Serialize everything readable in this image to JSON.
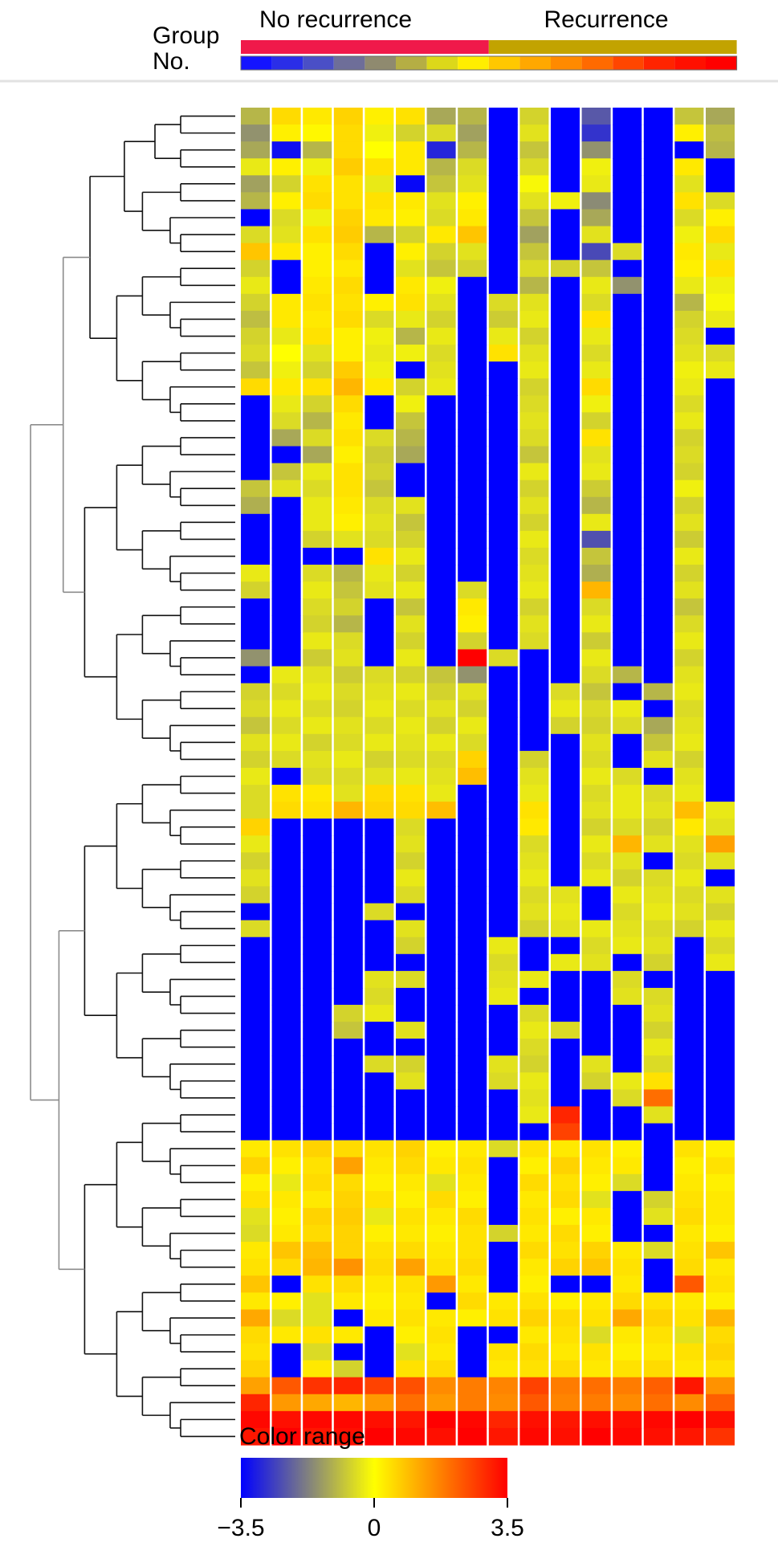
{
  "chart_data": {
    "type": "heatmap",
    "group_row_label": "Group",
    "number_row_label": "No.",
    "groups": [
      {
        "name": "No recurrence",
        "color": "#f0194a",
        "columns": 8
      },
      {
        "name": "Recurrence",
        "color": "#c2a300",
        "columns": 8
      }
    ],
    "number_colors": [
      "#1414ff",
      "#2a2ee8",
      "#4a4fc6",
      "#6e6e99",
      "#8f8a6f",
      "#b5ae44",
      "#dcd81a",
      "#ffee00",
      "#ffc800",
      "#ffa800",
      "#ff8a00",
      "#ff6a00",
      "#ff4600",
      "#ff2400",
      "#ff1000",
      "#ff0000"
    ],
    "color_scale": {
      "label": "Color range",
      "min": -3.5,
      "mid": 0,
      "max": 3.5,
      "tick_labels": [
        "−3.5",
        "0",
        "3.5"
      ],
      "colors": [
        "#0000ff",
        "#808080",
        "#ffff00",
        "#ff8000",
        "#ff0000"
      ]
    },
    "n_columns": 16,
    "n_rows": 65,
    "block_rows": 4,
    "values": [
      [
        -1.0,
        0.5,
        0.3,
        0.6,
        0.2,
        0.4,
        -1.2,
        -1.0,
        -3.5,
        -0.6,
        -3.5,
        -2.3,
        -3.5,
        -3.5,
        -0.8,
        -1.2
      ],
      [
        -1.5,
        0.2,
        0.1,
        0.5,
        -0.2,
        -0.6,
        -0.5,
        -1.3,
        -3.5,
        -0.4,
        -3.5,
        -2.8,
        -3.5,
        -3.5,
        0.2,
        -0.9
      ],
      [
        -1.2,
        -3.3,
        -1.0,
        0.5,
        0.0,
        0.3,
        -3.0,
        -1.0,
        -3.5,
        -0.8,
        -3.5,
        -1.5,
        -3.5,
        -3.5,
        -3.5,
        -1.0
      ],
      [
        -0.3,
        0.2,
        -0.2,
        0.7,
        0.4,
        0.3,
        -1.0,
        -0.5,
        -3.5,
        -0.5,
        -3.5,
        -0.2,
        -3.5,
        -3.5,
        0.3,
        -3.5
      ],
      [
        -1.3,
        -0.6,
        0.4,
        0.4,
        -0.3,
        -3.4,
        -0.8,
        -0.4,
        -3.5,
        -0.1,
        -3.5,
        -0.3,
        -3.5,
        -3.5,
        -0.4,
        -3.5
      ],
      [
        -1.0,
        0.2,
        0.5,
        0.4,
        0.4,
        0.3,
        -0.4,
        0.2,
        -3.5,
        -0.4,
        -0.2,
        -1.6,
        -3.5,
        -3.5,
        0.4,
        -0.5
      ],
      [
        -3.5,
        -0.5,
        -0.2,
        0.6,
        0.3,
        0.2,
        -0.5,
        0.3,
        -3.5,
        -0.8,
        -3.5,
        -1.2,
        -3.5,
        -3.5,
        -0.5,
        0.2
      ],
      [
        -0.5,
        -0.4,
        0.4,
        0.7,
        -1.0,
        -0.6,
        0.3,
        0.8,
        -3.5,
        -1.3,
        -3.5,
        -0.4,
        -3.5,
        -3.5,
        -0.2,
        0.5
      ],
      [
        0.8,
        0.3,
        0.2,
        0.5,
        -3.5,
        0.2,
        -0.6,
        -0.4,
        -3.5,
        -0.8,
        -3.5,
        -2.5,
        -0.5,
        -3.5,
        0.3,
        -0.3
      ],
      [
        -0.6,
        -3.5,
        0.2,
        0.3,
        -3.5,
        -0.4,
        -0.8,
        -0.6,
        -3.5,
        -0.5,
        -0.6,
        -0.8,
        -3.5,
        -3.5,
        0.2,
        0.4
      ],
      [
        -0.3,
        -3.5,
        0.3,
        0.5,
        -3.5,
        0.3,
        -0.2,
        -3.5,
        -3.5,
        -1.0,
        -3.5,
        -0.3,
        -1.5,
        -3.5,
        -0.3,
        -0.2
      ],
      [
        -0.6,
        0.3,
        0.4,
        0.4,
        0.2,
        0.4,
        -0.4,
        -3.5,
        -0.5,
        -0.4,
        -3.5,
        -0.5,
        -3.5,
        -3.5,
        -1.0,
        -0.1
      ],
      [
        -0.9,
        0.3,
        0.3,
        0.5,
        -0.5,
        -0.3,
        -0.6,
        -3.5,
        -0.7,
        -0.3,
        -3.5,
        0.4,
        -3.5,
        -3.5,
        -0.6,
        -0.3
      ],
      [
        -0.6,
        -0.3,
        0.4,
        0.2,
        -0.2,
        -1.0,
        -0.3,
        -3.5,
        -0.3,
        -0.6,
        -3.5,
        -0.3,
        -3.5,
        -3.5,
        -0.5,
        -3.5
      ],
      [
        -0.5,
        0.0,
        -0.4,
        0.2,
        -0.3,
        -0.2,
        -0.5,
        -3.5,
        0.4,
        -0.4,
        -3.5,
        -0.5,
        -3.5,
        -3.5,
        -0.4,
        -0.5
      ],
      [
        -0.8,
        -0.2,
        -0.6,
        0.7,
        -0.2,
        -3.5,
        -0.4,
        -3.5,
        -3.5,
        -0.3,
        -3.5,
        -0.3,
        -3.5,
        -3.5,
        -0.2,
        -0.3
      ],
      [
        0.5,
        0.3,
        0.4,
        1.0,
        0.3,
        -0.6,
        -0.3,
        -3.5,
        -3.5,
        -0.6,
        -3.5,
        0.5,
        -3.5,
        -3.5,
        -0.3,
        -3.5
      ],
      [
        -3.5,
        -0.3,
        -0.6,
        0.5,
        -3.5,
        -0.2,
        -3.5,
        -3.5,
        -3.5,
        -0.5,
        -3.5,
        -0.2,
        -3.5,
        -3.5,
        -0.5,
        -3.5
      ],
      [
        -3.5,
        -0.5,
        -1.0,
        0.3,
        -3.5,
        -0.8,
        -3.5,
        -3.5,
        -3.5,
        -0.4,
        -3.5,
        -0.6,
        -3.5,
        -3.5,
        -0.3,
        -3.5
      ],
      [
        -3.5,
        -1.2,
        -0.5,
        0.4,
        -0.5,
        -1.0,
        -3.5,
        -3.5,
        -3.5,
        -0.5,
        -3.5,
        0.4,
        -3.5,
        -3.5,
        -0.6,
        -3.5
      ],
      [
        -3.5,
        -3.5,
        -1.2,
        0.2,
        -0.7,
        -1.2,
        -3.5,
        -3.5,
        -3.5,
        -0.8,
        -3.5,
        -0.4,
        -3.5,
        -3.5,
        -0.5,
        -3.5
      ],
      [
        -3.5,
        -0.8,
        -0.3,
        0.4,
        -0.6,
        -3.5,
        -3.5,
        -3.5,
        -3.5,
        -0.3,
        -3.5,
        -0.3,
        -3.5,
        -3.5,
        -0.6,
        -3.5
      ],
      [
        -0.8,
        -0.4,
        -0.5,
        0.4,
        -0.8,
        -3.5,
        -3.5,
        -3.5,
        -3.5,
        -0.6,
        -3.5,
        -0.7,
        -3.5,
        -3.5,
        -0.2,
        -3.5
      ],
      [
        -1.1,
        -3.5,
        -0.3,
        0.3,
        -0.5,
        -0.4,
        -3.5,
        -3.5,
        -3.5,
        -0.4,
        -3.5,
        -1.0,
        -3.5,
        -3.5,
        -0.6,
        -3.5
      ],
      [
        -3.5,
        -3.5,
        -0.3,
        0.2,
        -0.4,
        -0.8,
        -3.5,
        -3.5,
        -3.5,
        -0.6,
        -3.5,
        -0.3,
        -3.5,
        -3.5,
        -0.4,
        -3.5
      ],
      [
        -3.5,
        -3.5,
        -0.6,
        -0.4,
        -0.5,
        -0.6,
        -3.5,
        -3.5,
        -3.5,
        -0.3,
        -3.5,
        -2.4,
        -3.5,
        -3.5,
        -0.7,
        -3.5
      ],
      [
        -3.5,
        -3.5,
        -3.5,
        -3.5,
        0.4,
        -0.3,
        -3.5,
        -3.5,
        -3.5,
        -0.5,
        -3.5,
        -0.8,
        -3.5,
        -3.5,
        -0.3,
        -3.5
      ],
      [
        -0.3,
        -3.5,
        -0.5,
        -1.0,
        -0.3,
        -0.6,
        -3.5,
        -3.5,
        -3.5,
        -0.4,
        -3.5,
        -1.1,
        -3.5,
        -3.5,
        -0.6,
        -3.5
      ],
      [
        -0.6,
        -3.5,
        -0.3,
        -0.8,
        -0.4,
        -0.3,
        -3.5,
        -0.5,
        -3.5,
        -0.3,
        -3.5,
        1.0,
        -3.5,
        -3.5,
        -0.4,
        -3.5
      ],
      [
        -3.5,
        -3.5,
        -0.5,
        -0.6,
        -3.5,
        -0.8,
        -3.5,
        0.3,
        -3.5,
        -0.6,
        -3.5,
        -0.5,
        -3.5,
        -3.5,
        -0.8,
        -3.5
      ],
      [
        -3.5,
        -3.5,
        -0.6,
        -1.0,
        -3.5,
        -0.4,
        -3.5,
        0.2,
        -3.5,
        -0.4,
        -3.5,
        -0.3,
        -3.5,
        -3.5,
        -0.5,
        -3.5
      ],
      [
        -3.5,
        -3.5,
        -0.3,
        -0.5,
        -3.5,
        -0.6,
        -3.5,
        -0.6,
        -3.5,
        -0.5,
        -3.5,
        -0.7,
        -3.5,
        -3.5,
        -0.3,
        -3.5
      ],
      [
        -1.5,
        -3.5,
        -0.7,
        -0.4,
        -3.5,
        -0.3,
        -3.5,
        3.5,
        -0.5,
        -3.5,
        -3.5,
        -0.3,
        -3.5,
        -3.5,
        -0.6,
        -3.5
      ],
      [
        -3.5,
        -0.3,
        -0.4,
        -0.7,
        -0.5,
        -0.6,
        -0.8,
        -1.5,
        -3.5,
        -3.5,
        -3.5,
        -0.5,
        -1.0,
        -3.5,
        -0.4,
        -3.5
      ],
      [
        -0.6,
        -0.5,
        -0.3,
        -0.5,
        -0.4,
        -0.3,
        -0.6,
        -0.4,
        -3.5,
        -3.5,
        -0.5,
        -0.8,
        -3.5,
        -1.0,
        -0.3,
        -3.5
      ],
      [
        -0.5,
        -0.3,
        -0.5,
        -0.6,
        -0.3,
        -0.5,
        -0.4,
        -0.6,
        -3.5,
        -3.5,
        -0.3,
        -0.5,
        -0.3,
        -3.5,
        -0.5,
        -3.5
      ],
      [
        -0.8,
        -0.5,
        -0.3,
        -0.4,
        -0.5,
        -0.3,
        -0.6,
        -0.3,
        -3.5,
        -3.5,
        -0.6,
        -0.6,
        -0.5,
        -1.2,
        -0.4,
        -3.5
      ],
      [
        -0.4,
        -0.3,
        -0.6,
        -0.5,
        -0.3,
        -0.4,
        -0.3,
        -0.5,
        -3.5,
        -3.5,
        -3.5,
        -0.4,
        -3.5,
        -0.8,
        -0.3,
        -3.5
      ],
      [
        -0.6,
        -0.5,
        -0.4,
        -0.3,
        -0.6,
        -0.5,
        -0.5,
        0.6,
        -3.5,
        -0.6,
        -3.5,
        -0.5,
        -3.5,
        -0.4,
        -0.6,
        -3.5
      ],
      [
        -0.3,
        -3.5,
        -0.5,
        -0.5,
        -0.4,
        -0.3,
        -0.4,
        0.9,
        -3.5,
        -0.4,
        -3.5,
        -0.3,
        -0.5,
        -3.5,
        -0.4,
        -3.5
      ],
      [
        -0.5,
        0.4,
        0.3,
        -0.4,
        0.5,
        0.4,
        -0.3,
        -3.5,
        -3.5,
        -0.3,
        -3.5,
        -0.5,
        -0.3,
        -0.5,
        -0.3,
        -3.5
      ],
      [
        -0.5,
        0.5,
        0.4,
        1.0,
        0.6,
        0.5,
        0.9,
        -3.5,
        -3.5,
        0.4,
        -3.5,
        -0.4,
        -0.3,
        -0.4,
        0.9,
        -0.3
      ],
      [
        0.6,
        -3.5,
        -3.5,
        -3.5,
        -3.5,
        -0.5,
        -3.5,
        -3.5,
        -3.5,
        0.3,
        -3.5,
        -0.6,
        -0.5,
        -0.6,
        0.3,
        -0.4
      ],
      [
        -0.3,
        -3.5,
        -3.5,
        -3.5,
        -3.5,
        -0.4,
        -3.5,
        -3.5,
        -3.5,
        -0.5,
        -3.5,
        -0.3,
        1.0,
        -0.4,
        -0.4,
        1.3
      ],
      [
        -0.6,
        -3.5,
        -3.5,
        -3.5,
        -3.5,
        -0.6,
        -3.5,
        -3.5,
        -3.5,
        -0.4,
        -3.5,
        -0.5,
        -0.4,
        -3.5,
        -0.5,
        -0.4
      ],
      [
        -0.4,
        -3.5,
        -3.5,
        -3.5,
        -3.5,
        -0.3,
        -3.5,
        -3.5,
        -3.5,
        -0.3,
        -3.5,
        -0.3,
        -0.6,
        -0.5,
        -0.3,
        -3.5
      ],
      [
        -0.6,
        -3.5,
        -3.5,
        -3.5,
        -3.5,
        -0.5,
        -3.5,
        -3.5,
        -3.5,
        -0.5,
        -0.4,
        -3.5,
        -0.3,
        -0.4,
        -0.5,
        -0.4
      ],
      [
        -3.5,
        -3.5,
        -3.5,
        -3.5,
        -0.5,
        -3.5,
        -3.5,
        -3.5,
        -3.5,
        -0.4,
        -0.3,
        -3.5,
        -0.5,
        -0.3,
        -0.4,
        -0.6
      ],
      [
        -0.5,
        -3.5,
        -3.5,
        -3.5,
        -3.5,
        -0.4,
        -3.5,
        -3.5,
        -3.5,
        -0.6,
        -0.4,
        -0.3,
        -0.4,
        -0.5,
        -0.6,
        -0.3
      ],
      [
        -3.5,
        -3.5,
        -3.5,
        -3.5,
        -3.5,
        -0.6,
        -3.5,
        -3.5,
        -0.3,
        -3.5,
        -3.5,
        -0.5,
        -0.3,
        -0.4,
        -3.5,
        -0.5
      ],
      [
        -3.5,
        -3.5,
        -3.5,
        -3.5,
        -3.5,
        -3.5,
        -3.5,
        -3.5,
        -0.5,
        -3.5,
        -0.3,
        -0.4,
        -3.5,
        -0.6,
        -3.5,
        -0.3
      ],
      [
        -3.5,
        -3.5,
        -3.5,
        -3.5,
        -0.4,
        -0.5,
        -3.5,
        -3.5,
        -0.4,
        -0.3,
        -3.5,
        -3.5,
        -0.5,
        -3.5,
        -3.5,
        -3.5
      ],
      [
        -3.5,
        -3.5,
        -3.5,
        -3.5,
        -0.5,
        -3.5,
        -3.5,
        -3.5,
        -0.3,
        -3.5,
        -3.5,
        -3.5,
        -0.4,
        -0.5,
        -3.5,
        -3.5
      ],
      [
        -3.5,
        -3.5,
        -3.5,
        -0.6,
        -0.3,
        -3.5,
        -3.5,
        -3.5,
        -3.5,
        -0.5,
        -3.5,
        -3.5,
        -3.5,
        -0.4,
        -3.5,
        -3.5
      ],
      [
        -3.5,
        -3.5,
        -3.5,
        -0.8,
        -3.5,
        -0.4,
        -3.5,
        -3.5,
        -3.5,
        -0.3,
        -0.5,
        -3.5,
        -3.5,
        -0.6,
        -3.5,
        -3.5
      ],
      [
        -3.5,
        -3.5,
        -3.5,
        -3.5,
        -3.5,
        -3.5,
        -3.5,
        -3.5,
        -3.5,
        -0.5,
        -3.5,
        -3.5,
        -3.5,
        -0.3,
        -3.5,
        -3.5
      ],
      [
        -3.5,
        -3.5,
        -3.5,
        -3.5,
        -0.5,
        -0.6,
        -3.5,
        -3.5,
        -0.4,
        -0.6,
        -3.5,
        -0.4,
        -3.5,
        -0.5,
        -3.5,
        -3.5
      ],
      [
        -3.5,
        -3.5,
        -3.5,
        -3.5,
        -3.5,
        -0.4,
        -3.5,
        -3.5,
        -0.5,
        -0.3,
        -3.5,
        -0.6,
        -0.3,
        0.4,
        -3.5,
        -3.5
      ],
      [
        -3.5,
        -3.5,
        -3.5,
        -3.5,
        -3.5,
        -3.5,
        -3.5,
        -3.5,
        -3.5,
        -0.4,
        -3.5,
        -3.5,
        -0.5,
        2.0,
        -3.5,
        -3.5
      ],
      [
        -3.5,
        -3.5,
        -3.5,
        -3.5,
        -3.5,
        -3.5,
        -3.5,
        -3.5,
        -3.5,
        -0.3,
        3.0,
        -3.5,
        -3.5,
        -0.4,
        -3.5,
        -3.5
      ],
      [
        -3.5,
        -3.5,
        -3.5,
        -3.5,
        -3.5,
        -3.5,
        -3.5,
        -3.5,
        -3.5,
        -3.5,
        2.6,
        -3.5,
        -3.5,
        -3.5,
        -3.5,
        -3.5
      ],
      [
        0.3,
        0.4,
        0.6,
        0.5,
        0.4,
        0.6,
        0.2,
        0.3,
        -0.5,
        0.4,
        0.3,
        0.4,
        0.2,
        -3.5,
        0.4,
        0.2
      ],
      [
        0.6,
        0.2,
        0.4,
        1.3,
        0.3,
        0.5,
        0.3,
        0.4,
        -3.5,
        0.2,
        0.6,
        0.3,
        0.3,
        -3.5,
        0.2,
        0.4
      ],
      [
        0.2,
        -0.3,
        0.5,
        0.5,
        0.2,
        0.3,
        -0.4,
        0.3,
        -3.5,
        0.5,
        0.4,
        0.2,
        -0.5,
        -3.5,
        0.3,
        0.2
      ],
      [
        0.4,
        0.3,
        0.3,
        0.6,
        0.4,
        0.2,
        0.5,
        0.2,
        -3.5,
        0.3,
        0.5,
        -0.4,
        -3.5,
        -0.6,
        0.4,
        0.3
      ]
    ],
    "tail_values": [
      [
        -0.4,
        0.2,
        0.6,
        0.7,
        -0.3,
        0.4,
        0.3,
        0.5,
        -3.5,
        0.4,
        0.2,
        0.3,
        -3.5,
        -0.4,
        0.5,
        0.3
      ],
      [
        -0.5,
        0.3,
        0.5,
        0.6,
        0.2,
        0.3,
        0.2,
        0.4,
        -0.6,
        0.3,
        0.5,
        0.2,
        -3.5,
        -3.5,
        0.3,
        0.2
      ],
      [
        0.3,
        0.8,
        0.9,
        0.6,
        0.4,
        0.5,
        0.3,
        0.4,
        -3.5,
        0.5,
        0.4,
        0.6,
        0.3,
        -0.5,
        0.4,
        0.8
      ],
      [
        0.4,
        0.5,
        1.0,
        1.5,
        0.5,
        1.3,
        0.4,
        0.5,
        -3.5,
        0.3,
        0.6,
        0.8,
        0.4,
        -3.5,
        0.5,
        0.3
      ],
      [
        0.8,
        -3.5,
        0.4,
        0.5,
        0.3,
        0.4,
        1.4,
        0.3,
        -3.5,
        0.2,
        -3.5,
        -3.5,
        0.3,
        -3.5,
        2.3,
        0.4
      ],
      [
        0.3,
        0.2,
        -0.4,
        0.3,
        0.2,
        0.3,
        -3.5,
        0.5,
        0.3,
        0.4,
        0.2,
        0.3,
        0.5,
        0.4,
        0.3,
        0.2
      ],
      [
        1.2,
        -0.5,
        -0.4,
        -3.5,
        0.3,
        0.4,
        0.3,
        0.2,
        0.4,
        0.6,
        0.5,
        0.4,
        1.2,
        0.6,
        0.4,
        1.0
      ],
      [
        0.5,
        0.3,
        0.4,
        0.3,
        -3.5,
        0.2,
        0.4,
        -3.5,
        -3.5,
        0.3,
        0.4,
        -0.5,
        0.3,
        0.4,
        -0.4,
        0.5
      ],
      [
        0.4,
        -3.5,
        -0.5,
        -3.5,
        -3.5,
        -0.4,
        0.3,
        -3.5,
        0.4,
        0.5,
        0.3,
        0.4,
        0.2,
        0.3,
        0.4,
        0.6
      ],
      [
        0.6,
        -3.5,
        0.3,
        -0.6,
        -3.5,
        0.4,
        0.5,
        -3.5,
        0.3,
        0.4,
        0.5,
        0.3,
        0.4,
        0.5,
        0.3,
        0.4
      ],
      [
        1.3,
        2.3,
        2.8,
        3.0,
        2.6,
        2.4,
        1.6,
        1.8,
        1.7,
        2.6,
        1.8,
        2.0,
        1.8,
        2.2,
        3.2,
        1.5
      ],
      [
        3.0,
        1.4,
        1.2,
        1.0,
        1.4,
        2.0,
        1.4,
        1.8,
        1.6,
        2.3,
        1.7,
        1.8,
        1.6,
        2.0,
        1.6,
        2.2
      ],
      [
        3.4,
        3.3,
        3.4,
        3.4,
        3.3,
        3.2,
        3.5,
        3.4,
        3.0,
        3.3,
        3.2,
        3.3,
        3.3,
        3.4,
        3.5,
        3.3
      ],
      [
        3.2,
        3.5,
        3.2,
        3.3,
        3.5,
        3.4,
        3.3,
        3.5,
        3.2,
        3.4,
        3.3,
        3.5,
        3.4,
        3.3,
        3.2,
        2.8
      ]
    ]
  }
}
